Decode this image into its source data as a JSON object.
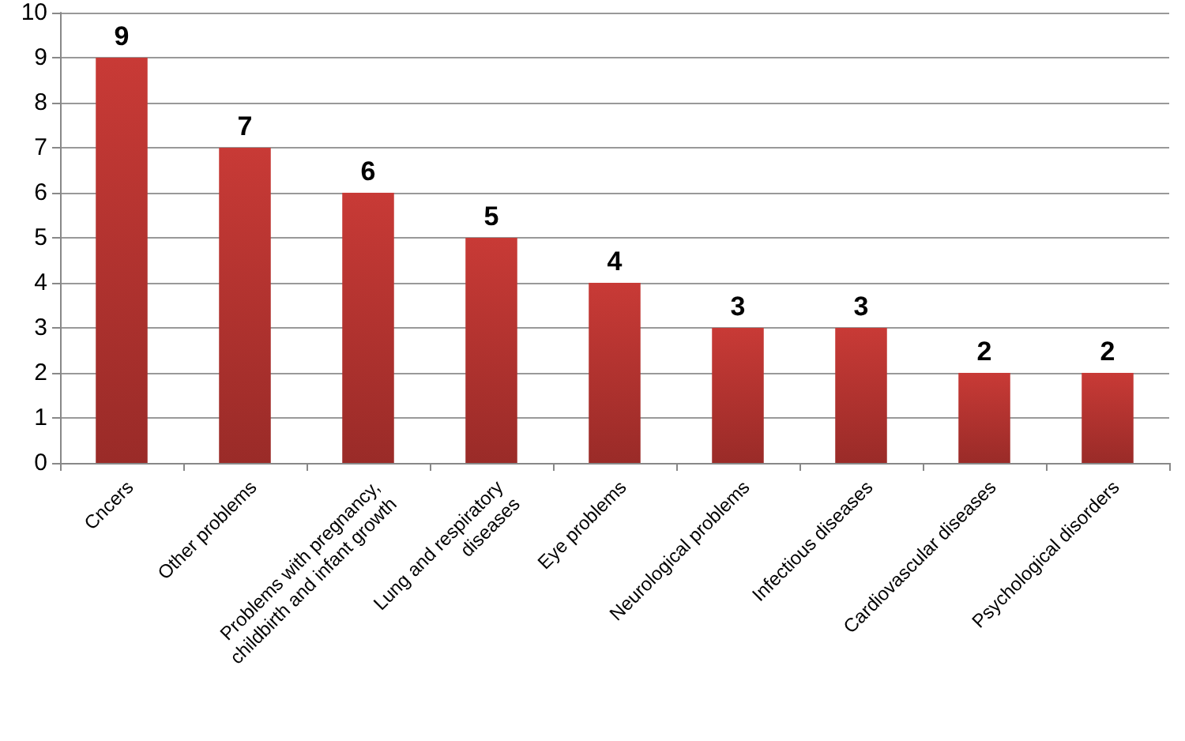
{
  "chart_data": {
    "type": "bar",
    "categories": [
      "Cncers",
      "Other problems",
      "Problems with pregnancy,\nchildbirth and infant growth",
      "Lung and respiratory\ndiseases",
      "Eye problems",
      "Neurological problems",
      "Infectious diseases",
      "Cardiovascular diseases",
      "Psychological disorders"
    ],
    "values": [
      9,
      7,
      6,
      5,
      4,
      3,
      3,
      2,
      2
    ],
    "color": "#c83a36",
    "ylim": [
      0,
      10
    ],
    "yticks": [
      0,
      1,
      2,
      3,
      4,
      5,
      6,
      7,
      8,
      9,
      10
    ],
    "grid": "y",
    "data_labels": true
  }
}
